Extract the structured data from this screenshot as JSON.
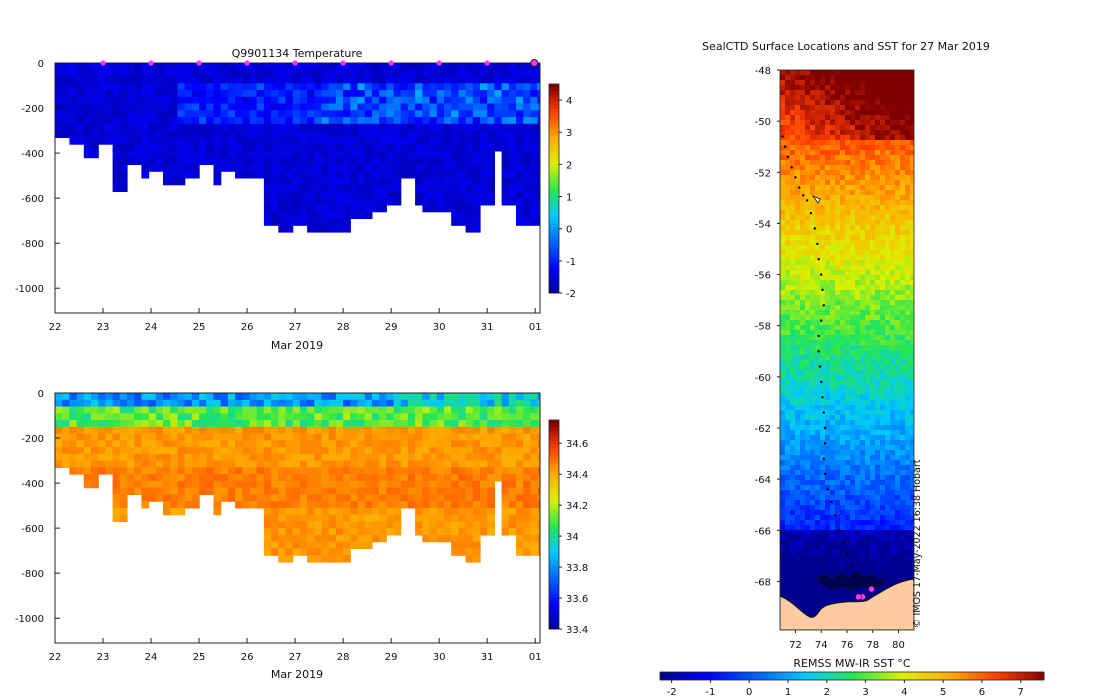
{
  "chart_data": [
    {
      "type": "heatmap",
      "id": "temperature-section",
      "title": "Q9901134  Temperature",
      "xlabel": "Mar 2019",
      "ylabel": "",
      "x_tick_labels": [
        "22",
        "23",
        "24",
        "25",
        "26",
        "27",
        "28",
        "29",
        "30",
        "31",
        "01"
      ],
      "x_range_days": [
        22,
        32.1
      ],
      "y_tick_labels": [
        "0",
        "-200",
        "-400",
        "-600",
        "-800",
        "-1000"
      ],
      "ylim": [
        -1110,
        0
      ],
      "colorbar_ticks": [
        "4",
        "3",
        "2",
        "1",
        "0",
        "-1",
        "-2"
      ],
      "colorbar_range": [
        -2,
        4.5
      ],
      "profile_marker_days": [
        23,
        24,
        25,
        26,
        27,
        28,
        29,
        30,
        31,
        32
      ],
      "profile_depths": [
        [
          22.0,
          -330
        ],
        [
          22.3,
          -340
        ],
        [
          22.6,
          -395
        ],
        [
          22.8,
          -350
        ],
        [
          23.2,
          -550
        ],
        [
          23.5,
          -440
        ],
        [
          23.7,
          -500
        ],
        [
          23.9,
          -480
        ],
        [
          24.2,
          -540
        ],
        [
          24.4,
          -520
        ],
        [
          24.6,
          -490
        ],
        [
          24.9,
          -440
        ],
        [
          25.2,
          -520
        ],
        [
          25.4,
          -470
        ],
        [
          25.7,
          -500
        ],
        [
          26.0,
          -505
        ],
        [
          26.3,
          -715
        ],
        [
          26.6,
          -725
        ],
        [
          26.9,
          -715
        ],
        [
          27.2,
          -735
        ],
        [
          27.5,
          -730
        ],
        [
          27.8,
          -735
        ],
        [
          28.1,
          -685
        ],
        [
          28.4,
          -680
        ],
        [
          28.6,
          -660
        ],
        [
          28.9,
          -615
        ],
        [
          29.1,
          -500
        ],
        [
          29.4,
          -630
        ],
        [
          29.6,
          -640
        ],
        [
          29.9,
          -660
        ],
        [
          30.2,
          -700
        ],
        [
          30.5,
          -735
        ],
        [
          30.8,
          -630
        ],
        [
          31.1,
          -370
        ],
        [
          31.3,
          -620
        ],
        [
          31.6,
          -695
        ],
        [
          31.9,
          -710
        ]
      ],
      "colors": [
        "#00008f",
        "#0000ff",
        "#00bfff",
        "#40ff40",
        "#ffd700",
        "#ff4500",
        "#8b0000"
      ]
    },
    {
      "type": "heatmap",
      "id": "salinity-section",
      "title": "",
      "xlabel": "Mar 2019",
      "x_tick_labels": [
        "22",
        "23",
        "24",
        "25",
        "26",
        "27",
        "28",
        "29",
        "30",
        "31",
        "01"
      ],
      "y_tick_labels": [
        "0",
        "-200",
        "-400",
        "-600",
        "-800",
        "-1000"
      ],
      "ylim": [
        -1110,
        0
      ],
      "colorbar_ticks": [
        "34.6",
        "34.4",
        "34.2",
        "34",
        "33.8",
        "33.6",
        "33.4"
      ],
      "colorbar_range": [
        33.4,
        34.75
      ]
    },
    {
      "type": "heatmap",
      "id": "sst-map",
      "title": "SealCTD Surface Locations and SST for 27 Mar 2019",
      "xlabel": "",
      "x_tick_labels": [
        "72",
        "74",
        "76",
        "78",
        "80"
      ],
      "xlim": [
        70.8,
        81.2
      ],
      "y_tick_labels": [
        "-48",
        "-50",
        "-52",
        "-54",
        "-56",
        "-58",
        "-60",
        "-62",
        "-64",
        "-66",
        "-68"
      ],
      "ylim": [
        -69.9,
        -48
      ],
      "colorbar_label": "REMSS MW-IR SST °C",
      "colorbar_ticks": [
        "-2",
        "-1",
        "0",
        "1",
        "2",
        "3",
        "4",
        "5",
        "6",
        "7"
      ],
      "colorbar_range": [
        -2.3,
        7.6
      ],
      "credit": "© IMOS 17-May-2022 16:38 Hobart",
      "track_points": [
        [
          71.0,
          -50.6
        ],
        [
          71.2,
          -51.0
        ],
        [
          71.4,
          -51.4
        ],
        [
          71.7,
          -51.8
        ],
        [
          72.0,
          -52.2
        ],
        [
          72.3,
          -52.6
        ],
        [
          72.6,
          -52.9
        ],
        [
          72.9,
          -53.1
        ],
        [
          73.2,
          -53.6
        ],
        [
          73.5,
          -54.2
        ],
        [
          73.7,
          -54.8
        ],
        [
          73.8,
          -55.4
        ],
        [
          74.0,
          -56.0
        ],
        [
          74.1,
          -56.6
        ],
        [
          74.2,
          -57.2
        ],
        [
          74.0,
          -57.8
        ],
        [
          73.8,
          -58.4
        ],
        [
          73.8,
          -59.0
        ],
        [
          73.9,
          -59.6
        ],
        [
          74.0,
          -60.2
        ],
        [
          74.1,
          -60.8
        ],
        [
          74.2,
          -61.4
        ],
        [
          74.3,
          -62.0
        ],
        [
          74.3,
          -62.6
        ],
        [
          74.2,
          -63.2
        ],
        [
          74.3,
          -63.8
        ],
        [
          74.5,
          -64.4
        ],
        [
          74.8,
          -64.9
        ],
        [
          75.1,
          -65.4
        ],
        [
          75.4,
          -66.0
        ],
        [
          75.7,
          -66.5
        ],
        [
          76.0,
          -66.9
        ],
        [
          76.3,
          -67.4
        ],
        [
          76.6,
          -67.8
        ],
        [
          76.9,
          -68.2
        ],
        [
          77.0,
          -68.5
        ]
      ],
      "highlight_points": [
        [
          77.9,
          -68.3
        ],
        [
          77.2,
          -68.6
        ],
        [
          76.9,
          -68.6
        ]
      ]
    }
  ]
}
